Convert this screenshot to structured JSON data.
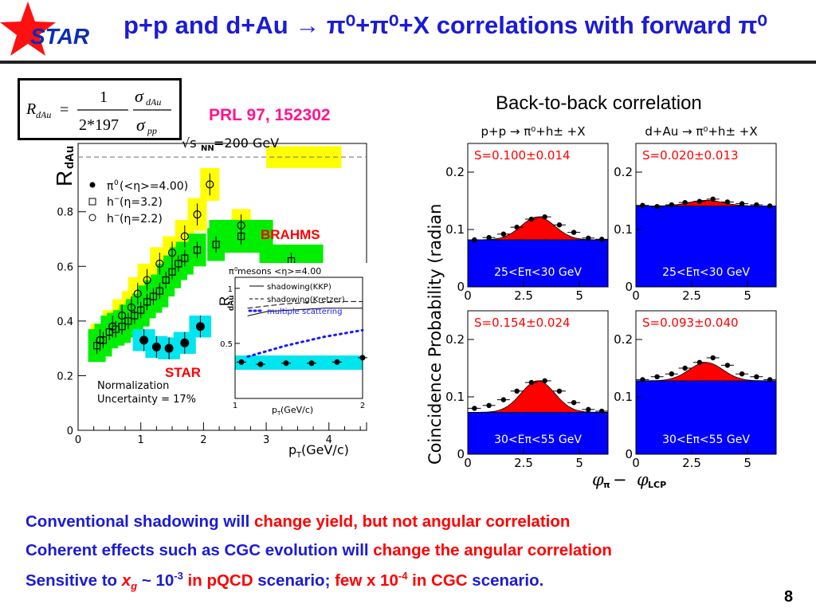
{
  "header": {
    "logo_text": "STAR",
    "title": "p+p and d+Au → π⁰+π⁰+X correlations with forward π⁰"
  },
  "formula": {
    "lhs": "R",
    "lhs_sub": "dAu",
    "num1": "1",
    "den1": "2*197",
    "sigma": "σ",
    "num_sub": "dAu",
    "den_sub": "pp"
  },
  "reference": "PRL 97, 152302",
  "left_chart": {
    "ylabel": "R",
    "ylabel_sub": "dAu",
    "energy_label": "√s",
    "energy_sub": "NN",
    "energy_value": "=200 GeV",
    "x_ticks": [
      "0",
      "1",
      "2",
      "3",
      "4"
    ],
    "y_ticks": [
      "0",
      "0.2",
      "0.4",
      "0.6",
      "0.8"
    ],
    "top_tick": "1",
    "xlabel": "p",
    "xlabel_sub": "T",
    "xlabel_unit": " (GeV/c)",
    "legend": [
      {
        "marker": "filled-circle",
        "text_main": "π",
        "text_sup": "0",
        "text_rest": " (<η>=4.00)"
      },
      {
        "marker": "open-square",
        "text_main": "h",
        "text_sup": "−",
        "text_rest": " (η=3.2)"
      },
      {
        "marker": "open-circle",
        "text_main": "h",
        "text_sup": "−",
        "text_rest": " (η=2.2)"
      }
    ],
    "brahms_label": "BRAHMS",
    "star_label": "STAR",
    "norm_line1": "Normalization",
    "norm_line2": "Uncertainty = 17%",
    "colors": {
      "brahms_22": "#ffff00",
      "brahms_32": "#00ee00",
      "star": "#00e5ee",
      "label_red": "#ff0000"
    }
  },
  "chart_data": [
    {
      "type": "scatter",
      "title": "",
      "xlabel": "pT (GeV/c)",
      "ylabel": "RdAu",
      "xlim": [
        0,
        4.6
      ],
      "ylim": [
        0,
        1.05
      ],
      "series": [
        {
          "name": "π0 (<η>=4.00)",
          "marker": "filled-circle",
          "x": [
            1.05,
            1.25,
            1.45,
            1.7,
            1.95
          ],
          "y": [
            0.33,
            0.305,
            0.3,
            0.32,
            0.38
          ]
        },
        {
          "name": "h− (η=3.2)",
          "marker": "open-square",
          "x": [
            0.3,
            0.4,
            0.5,
            0.6,
            0.7,
            0.8,
            0.9,
            1.0,
            1.1,
            1.2,
            1.3,
            1.4,
            1.5,
            1.6,
            1.7,
            1.9,
            2.2,
            2.6,
            3.4
          ],
          "y": [
            0.31,
            0.33,
            0.36,
            0.37,
            0.38,
            0.4,
            0.42,
            0.44,
            0.47,
            0.49,
            0.51,
            0.55,
            0.58,
            0.61,
            0.63,
            0.66,
            0.68,
            0.71,
            0.62
          ]
        },
        {
          "name": "h− (η=2.2)",
          "marker": "open-circle",
          "x": [
            0.35,
            0.55,
            0.7,
            0.85,
            0.95,
            1.1,
            1.3,
            1.5,
            1.7,
            1.9,
            2.1,
            2.6
          ],
          "y": [
            0.33,
            0.38,
            0.42,
            0.45,
            0.5,
            0.55,
            0.61,
            0.65,
            0.71,
            0.79,
            0.9,
            0.75
          ]
        }
      ]
    },
    {
      "type": "line",
      "title": "π0 mesons <η>=4.00",
      "xlabel": "pT (GeV/c)",
      "ylabel": "RdAu",
      "xlim": [
        1,
        2
      ],
      "ylim": [
        0,
        1.1
      ],
      "series": [
        {
          "name": "shadowing(KKP)",
          "x": [
            1.1,
            1.25,
            1.4,
            1.55,
            1.7,
            1.85,
            2.0
          ],
          "y": [
            0.75,
            0.79,
            0.8,
            0.81,
            0.82,
            0.82,
            0.82
          ]
        },
        {
          "name": "shadowing(Kretzer)",
          "x": [
            1.1,
            1.25,
            1.4,
            1.55,
            1.7,
            1.85,
            2.0
          ],
          "y": [
            0.82,
            0.84,
            0.86,
            0.87,
            0.87,
            0.88,
            0.88
          ]
        },
        {
          "name": "multiple scattering",
          "x": [
            1.1,
            1.25,
            1.4,
            1.55,
            1.7,
            1.85,
            2.0
          ],
          "y": [
            0.38,
            0.43,
            0.48,
            0.52,
            0.56,
            0.59,
            0.62
          ]
        },
        {
          "name": "π0 data",
          "x": [
            1.05,
            1.2,
            1.4,
            1.6,
            1.8,
            2.0
          ],
          "y": [
            0.33,
            0.31,
            0.32,
            0.32,
            0.33,
            0.37
          ]
        }
      ]
    },
    {
      "type": "area",
      "title": "Back-to-back correlation",
      "xlabel": "φπ − φLCP",
      "ylabel": "Coincidence Probability (radian⁻¹)",
      "xlim": [
        0,
        6.28
      ],
      "ylim": [
        0,
        0.25
      ],
      "panels": [
        {
          "header": "p+p → π⁰+h± +X",
          "S": "S=0.100±0.014",
          "energy": "25<Eπ<30 GeV",
          "baseline": 0.082,
          "amplitude": 0.04,
          "x": [
            0.3,
            0.95,
            1.6,
            2.2,
            2.85,
            3.45,
            4.1,
            4.75,
            5.4,
            6.0
          ],
          "y": [
            0.082,
            0.086,
            0.092,
            0.104,
            0.118,
            0.122,
            0.108,
            0.095,
            0.085,
            0.083
          ]
        },
        {
          "header": "d+Au → π⁰+h± +X",
          "S": "S=0.020±0.013",
          "energy": "25<Eπ<30 GeV",
          "baseline": 0.141,
          "amplitude": 0.01,
          "x": [
            0.3,
            0.95,
            1.6,
            2.2,
            2.85,
            3.45,
            4.1,
            4.75,
            5.4,
            6.0
          ],
          "y": [
            0.142,
            0.14,
            0.143,
            0.147,
            0.149,
            0.153,
            0.148,
            0.145,
            0.143,
            0.141
          ]
        },
        {
          "header": "",
          "S": "S=0.154±0.024",
          "energy": "30<Eπ<55 GeV",
          "baseline": 0.073,
          "amplitude": 0.055,
          "x": [
            0.3,
            0.95,
            1.6,
            2.2,
            2.85,
            3.45,
            4.1,
            4.75,
            5.4,
            6.0
          ],
          "y": [
            0.08,
            0.085,
            0.095,
            0.11,
            0.125,
            0.128,
            0.11,
            0.09,
            0.078,
            0.075
          ]
        },
        {
          "header": "",
          "S": "S=0.093±0.040",
          "energy": "30<Eπ<55 GeV",
          "baseline": 0.128,
          "amplitude": 0.032,
          "x": [
            0.3,
            0.95,
            1.6,
            2.2,
            2.85,
            3.45,
            4.1,
            4.75,
            5.4,
            6.0
          ],
          "y": [
            0.13,
            0.135,
            0.14,
            0.15,
            0.16,
            0.168,
            0.155,
            0.14,
            0.135,
            0.13
          ]
        }
      ]
    }
  ],
  "inset_chart": {
    "title_main": "π",
    "title_sup": "0",
    "title_rest": " mesons <η>=4.00",
    "ylabel": "R",
    "ylabel_sub": "dAu",
    "x_ticks": [
      "1",
      "2"
    ],
    "y_ticks": [
      "0.5",
      "1"
    ],
    "xlabel": "p",
    "xlabel_sub": "T",
    "xlabel_unit": " (GeV/c)",
    "legend": [
      {
        "style": "solid",
        "text": "shadowing(KKP)"
      },
      {
        "style": "dashed",
        "text": "shadowing(Kretzer)"
      },
      {
        "style": "dotted",
        "text": "multiple scattering"
      }
    ],
    "colors": {
      "multiple_scattering": "#1a1aff"
    }
  },
  "b2b": {
    "title": "Back-to-back correlation",
    "ylabel": "Coincidence Probability (radian",
    "ylabel_sup": "−1",
    "ylabel_end": ")",
    "x_ticks": [
      "0",
      "2.5",
      "5"
    ],
    "y_ticks": [
      "0",
      "0.1",
      "0.2"
    ],
    "xlabel_phi": "φ",
    "xlabel_sub_a": "π",
    "xlabel_minus": " − ",
    "xlabel_sub_b": "LCP",
    "colors": {
      "baseline_fill": "#0000ff",
      "peak_fill": "#ff0000",
      "s_text": "#ff0000"
    }
  },
  "bullets": [
    {
      "a": "Conventional shadowing will ",
      "b": "change yield, but not angular correlation"
    },
    {
      "a": "Coherent effects such as CGC evolution will ",
      "b": "change the angular correlation"
    },
    {
      "a": "Sensitive to ",
      "xg": "x",
      "xg_sub": "g",
      "c": " ~ 10",
      "c_sup": "-3",
      "d": " in pQCD",
      "e": " scenario; ",
      "f": "few x 10",
      "f_sup": "-4",
      "g": " in CGC",
      "h": " scenario."
    }
  ],
  "page_number": "8"
}
